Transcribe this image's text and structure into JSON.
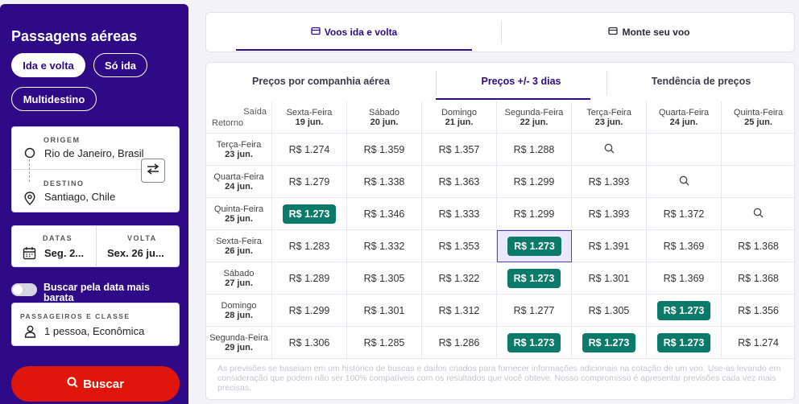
{
  "sidebar": {
    "title": "Passagens aéreas",
    "trip_types": [
      "Ida e volta",
      "Só ida",
      "Multidestino"
    ],
    "origin": {
      "label": "ORIGEM",
      "value": "Rio de Janeiro, Brasil"
    },
    "destination": {
      "label": "DESTINO",
      "value": "Santiago, Chile"
    },
    "dates": {
      "label": "DATAS",
      "value": "Seg. 2..."
    },
    "return": {
      "label": "VOLTA",
      "value": "Sex. 26 ju..."
    },
    "flex_toggle_label": "Buscar pela data mais barata",
    "passengers": {
      "label": "PASSAGEIROS E CLASSE",
      "value": "1 pessoa, Econômica"
    },
    "search_button": "Buscar"
  },
  "top_tabs": [
    "Voos ida e volta",
    "Monte seu voo"
  ],
  "sub_tabs": [
    "Preços por companhia aérea",
    "Preços +/- 3 dias",
    "Tendência de preços"
  ],
  "matrix": {
    "corner_top": "Saída",
    "corner_bottom": "Retorno",
    "departures": [
      {
        "day": "Sexta-Feira",
        "date": "19 jun."
      },
      {
        "day": "Sábado",
        "date": "20 jun."
      },
      {
        "day": "Domingo",
        "date": "21 jun."
      },
      {
        "day": "Segunda-Feira",
        "date": "22 jun."
      },
      {
        "day": "Terça-Feira",
        "date": "23 jun."
      },
      {
        "day": "Quarta-Feira",
        "date": "24 jun."
      },
      {
        "day": "Quinta-Feira",
        "date": "25 jun."
      }
    ],
    "returns": [
      {
        "day": "Terça-Feira",
        "date": "23 jun."
      },
      {
        "day": "Quarta-Feira",
        "date": "24 jun."
      },
      {
        "day": "Quinta-Feira",
        "date": "25 jun."
      },
      {
        "day": "Sexta-Feira",
        "date": "26 jun."
      },
      {
        "day": "Sábado",
        "date": "27 jun."
      },
      {
        "day": "Domingo",
        "date": "28 jun."
      },
      {
        "day": "Segunda-Feira",
        "date": "29 jun."
      }
    ],
    "rows": [
      [
        "R$ 1.274",
        "R$ 1.359",
        "R$ 1.357",
        "R$ 1.288",
        "search",
        "",
        ""
      ],
      [
        "R$ 1.279",
        "R$ 1.338",
        "R$ 1.363",
        "R$ 1.299",
        "R$ 1.393",
        "search",
        ""
      ],
      [
        "R$ 1.273*",
        "R$ 1.346",
        "R$ 1.333",
        "R$ 1.299",
        "R$ 1.393",
        "R$ 1.372",
        "search"
      ],
      [
        "R$ 1.283",
        "R$ 1.332",
        "R$ 1.353",
        "R$ 1.273*",
        "R$ 1.391",
        "R$ 1.369",
        "R$ 1.368"
      ],
      [
        "R$ 1.289",
        "R$ 1.305",
        "R$ 1.322",
        "R$ 1.273*",
        "R$ 1.301",
        "R$ 1.369",
        "R$ 1.368"
      ],
      [
        "R$ 1.299",
        "R$ 1.301",
        "R$ 1.312",
        "R$ 1.277",
        "R$ 1.305",
        "R$ 1.273*",
        "R$ 1.356"
      ],
      [
        "R$ 1.306",
        "R$ 1.285",
        "R$ 1.286",
        "R$ 1.273*",
        "R$ 1.273*",
        "R$ 1.273*",
        "R$ 1.274"
      ]
    ],
    "selected": [
      3,
      3
    ],
    "best_color": "#0b7a6b"
  },
  "disclaimer": "As previsões se baseiam em um histórico de buscas e dados criados para fornecer informações adicionais na cotação de um voo. Use-as levando em consideração que podem não ser 100% compatíveis com os resultados que você obteve. Nosso compromisso é apresentar previsões cada vez mais precisas."
}
